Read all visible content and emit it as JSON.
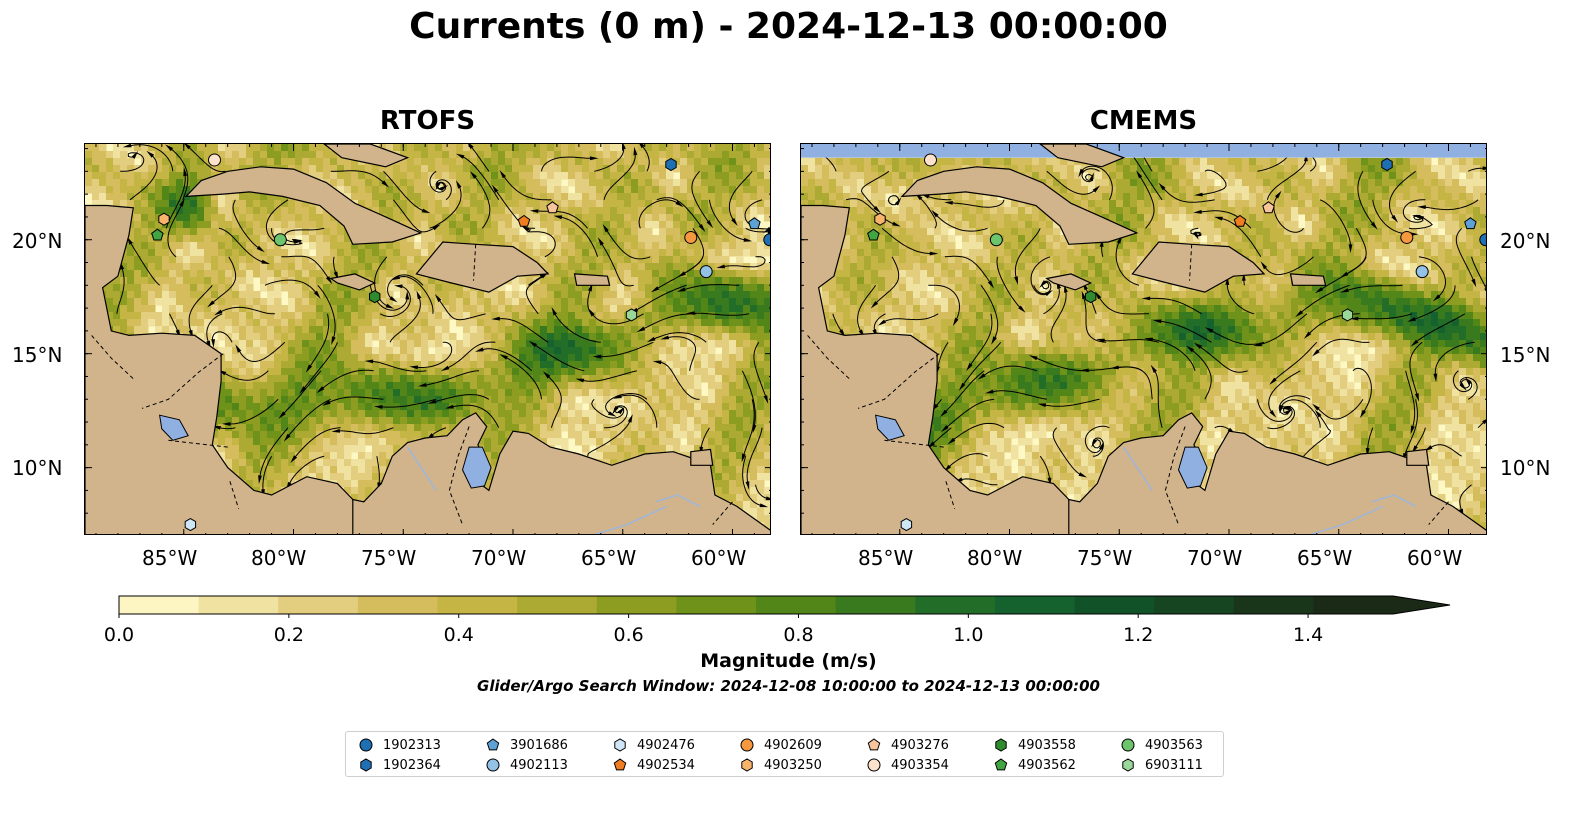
{
  "title": "Currents (0 m) - 2024-12-13 00:00:00",
  "panels": [
    {
      "title": "RTOFS",
      "lat_labels_side": "left"
    },
    {
      "title": "CMEMS",
      "lat_labels_side": "right"
    }
  ],
  "map": {
    "lon_range": [
      -89.5,
      -58.2
    ],
    "lat_range": [
      7.0,
      24.2
    ],
    "lon_ticks": [
      "85°W",
      "80°W",
      "75°W",
      "70°W",
      "65°W",
      "60°W"
    ],
    "lat_ticks": [
      "20°N",
      "15°N",
      "10°N"
    ],
    "land_color": "#d2b48c",
    "lake_color": "#8fb0e0",
    "ocean_low_color": "#fdf8c4"
  },
  "colorbar": {
    "label": "Magnitude (m/s)",
    "ticks": [
      "0.0",
      "0.2",
      "0.4",
      "0.6",
      "0.8",
      "1.0",
      "1.2",
      "1.4"
    ],
    "range": [
      0,
      1.5
    ],
    "extend": "max",
    "colors": [
      "#fdf6c3",
      "#f0e2a0",
      "#e3cd7e",
      "#d5bd5e",
      "#c5b545",
      "#acaa33",
      "#8c9d22",
      "#6f921b",
      "#538619",
      "#3a7a1f",
      "#226e28",
      "#15622f",
      "#125229",
      "#164522",
      "#19361b",
      "#1b2a16"
    ]
  },
  "search_window": "Glider/Argo Search Window: 2024-12-08 10:00:00 to 2024-12-13 00:00:00",
  "floats": [
    {
      "id": "1902313",
      "marker": "circle",
      "color": "#1f6fb5",
      "lon": -58.3,
      "lat": 20.0
    },
    {
      "id": "1902364",
      "marker": "hexagon",
      "color": "#1f6fb5",
      "lon": -62.8,
      "lat": 23.3
    },
    {
      "id": "3901686",
      "marker": "pentagon",
      "color": "#5ea1d4",
      "lon": -59.0,
      "lat": 20.7
    },
    {
      "id": "4902113",
      "marker": "circle",
      "color": "#93c2e6",
      "lon": -61.2,
      "lat": 18.6
    },
    {
      "id": "4902476",
      "marker": "hexagon",
      "color": "#cfe6f7",
      "lon": -84.7,
      "lat": 7.5
    },
    {
      "id": "4902534",
      "marker": "pentagon",
      "color": "#f07d1f",
      "lon": -69.5,
      "lat": 20.8
    },
    {
      "id": "4902609",
      "marker": "circle",
      "color": "#f5983f",
      "lon": -61.9,
      "lat": 20.1
    },
    {
      "id": "4903250",
      "marker": "hexagon",
      "color": "#f8b46c",
      "lon": -85.9,
      "lat": 20.9
    },
    {
      "id": "4903276",
      "marker": "pentagon",
      "color": "#f8c49b",
      "lon": -68.2,
      "lat": 21.4
    },
    {
      "id": "4903354",
      "marker": "circle",
      "color": "#fde3cc",
      "lon": -83.6,
      "lat": 23.5
    },
    {
      "id": "4903558",
      "marker": "hexagon",
      "color": "#2e8b2e",
      "lon": -76.3,
      "lat": 17.5
    },
    {
      "id": "4903562",
      "marker": "pentagon",
      "color": "#41a541",
      "lon": -86.2,
      "lat": 20.2
    },
    {
      "id": "4903563",
      "marker": "circle",
      "color": "#6cc56c",
      "lon": -80.6,
      "lat": 20.0
    },
    {
      "id": "6903111",
      "marker": "hexagon",
      "color": "#9ad89a",
      "lon": -64.6,
      "lat": 16.7
    }
  ]
}
